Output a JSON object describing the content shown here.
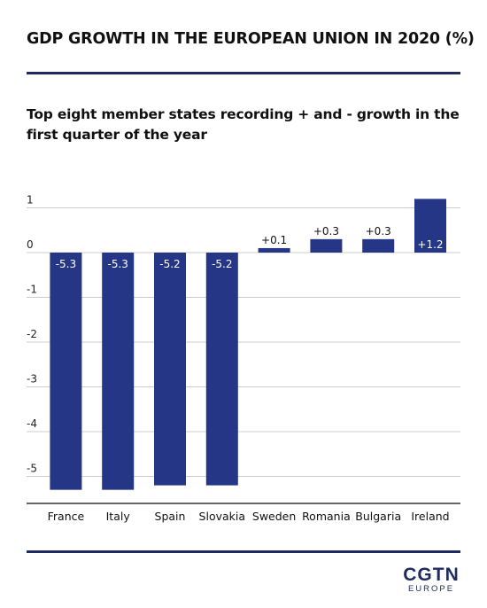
{
  "header": {
    "title": "GDP GROWTH IN THE EUROPEAN UNION IN 2020 (%)",
    "subtitle": "Top eight member states recording + and - growth in the first quarter of the year"
  },
  "logo": {
    "main": "CGTN",
    "sub": "EUROPE"
  },
  "colors": {
    "bar": "#253686",
    "rule": "#1f2a5e",
    "grid": "#cccccc",
    "axis": "#333333"
  },
  "chart_data": {
    "type": "bar",
    "title": "GDP GROWTH IN THE EUROPEAN UNION IN 2020 (%)",
    "subtitle": "Top eight member states recording + and - growth in the first quarter of the year",
    "categories": [
      "France",
      "Italy",
      "Spain",
      "Slovakia",
      "Sweden",
      "Romania",
      "Bulgaria",
      "Ireland"
    ],
    "values": [
      -5.3,
      -5.3,
      -5.2,
      -5.2,
      0.1,
      0.3,
      0.3,
      1.2
    ],
    "data_labels": [
      "-5.3",
      "-5.3",
      "-5.2",
      "-5.2",
      "+0.1",
      "+0.3",
      "+0.3",
      "+1.2"
    ],
    "y_ticks": [
      1,
      0,
      -1,
      -2,
      -3,
      -4,
      -5
    ],
    "y_tick_labels": [
      "1",
      "0",
      "-1",
      "-2",
      "-3",
      "-4",
      "-5"
    ],
    "ylim": [
      -5.6,
      1.2
    ],
    "xlabel": "",
    "ylabel": "",
    "grid": true,
    "legend": "none"
  }
}
